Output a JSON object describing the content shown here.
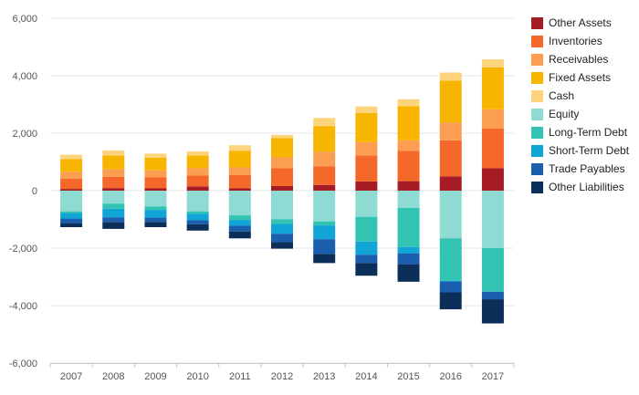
{
  "chart_data": {
    "type": "bar",
    "stacked": true,
    "categories": [
      "2007",
      "2008",
      "2009",
      "2010",
      "2011",
      "2012",
      "2013",
      "2014",
      "2015",
      "2016",
      "2017"
    ],
    "ylim": [
      -6000,
      6000
    ],
    "yticks": [
      6000,
      4000,
      2000,
      0,
      -2000,
      -4000,
      -6000
    ],
    "ytick_labels": [
      "6,000",
      "4,000",
      "2,000",
      "0",
      "-2,000",
      "-4,000",
      "-6,000"
    ],
    "grid": true,
    "legend_position": "right",
    "series": [
      {
        "name": "Other Assets",
        "color": "#a51c24",
        "values": [
          60,
          90,
          80,
          150,
          80,
          160,
          200,
          320,
          330,
          500,
          780
        ]
      },
      {
        "name": "Inventories",
        "color": "#f4692a",
        "values": [
          360,
          390,
          380,
          380,
          460,
          620,
          650,
          900,
          1060,
          1250,
          1380
        ]
      },
      {
        "name": "Receivables",
        "color": "#fb9e52",
        "values": [
          240,
          270,
          250,
          250,
          270,
          380,
          510,
          470,
          360,
          620,
          670
        ]
      },
      {
        "name": "Fixed Assets",
        "color": "#f8b500",
        "values": [
          440,
          470,
          440,
          440,
          580,
          670,
          890,
          1010,
          1190,
          1460,
          1460
        ]
      },
      {
        "name": "Cash",
        "color": "#fdd37c",
        "values": [
          150,
          180,
          140,
          150,
          190,
          110,
          280,
          230,
          240,
          280,
          280
        ]
      },
      {
        "name": "Equity",
        "color": "#8ddbd2",
        "values": [
          -720,
          -450,
          -550,
          -720,
          -860,
          -1000,
          -1070,
          -910,
          -600,
          -1660,
          -2000
        ]
      },
      {
        "name": "Long-Term Debt",
        "color": "#33c3b2",
        "values": [
          -60,
          -180,
          -120,
          -80,
          -160,
          -160,
          -140,
          -860,
          -1360,
          -1480,
          -1510
        ]
      },
      {
        "name": "Short-Term Debt",
        "color": "#10a5d4",
        "values": [
          -190,
          -300,
          -270,
          -230,
          -200,
          -340,
          -480,
          -460,
          -220,
          -20,
          -10
        ]
      },
      {
        "name": "Trade Payables",
        "color": "#1a5fad",
        "values": [
          -160,
          -170,
          -150,
          -140,
          -200,
          -290,
          -510,
          -290,
          -380,
          -380,
          -260
        ]
      },
      {
        "name": "Other Liabilities",
        "color": "#0c2f5a",
        "values": [
          -140,
          -230,
          -180,
          -220,
          -240,
          -230,
          -320,
          -440,
          -610,
          -590,
          -840
        ]
      }
    ]
  }
}
